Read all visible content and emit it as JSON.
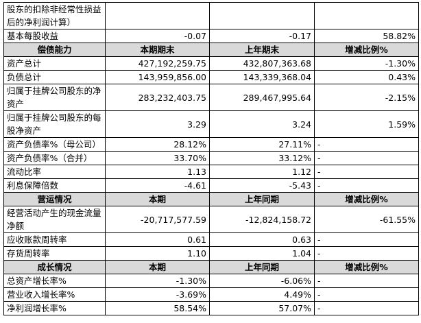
{
  "table": {
    "rows": [
      {
        "label": "股东的扣除非经常性损益后的净利润计算）"
      },
      {
        "label": "基本每股收益",
        "current": "-0.07",
        "previous": "-0.17",
        "change": "58.82%"
      },
      {
        "section": "偿债能力",
        "current": "本期期末",
        "previous": "上年期末",
        "change": "增减比例%"
      },
      {
        "label": "资产总计",
        "current": "427,192,259.75",
        "previous": "432,807,363.68",
        "change": "-1.30%"
      },
      {
        "label": "负债总计",
        "current": "143,959,856.00",
        "previous": "143,339,368.04",
        "change": "0.43%"
      },
      {
        "label": "归属于挂牌公司股东的净资产",
        "current": "283,232,403.75",
        "previous": "289,467,995.64",
        "change": "-2.15%"
      },
      {
        "label": "归属于挂牌公司股东的每股净资产",
        "current": "3.29",
        "previous": "3.24",
        "change": "1.59%"
      },
      {
        "label": "资产负债率%（母公司）",
        "current": "28.12%",
        "previous": "27.11%",
        "change": "-"
      },
      {
        "label": "资产负债率%（合并）",
        "current": "33.70%",
        "previous": "33.12%",
        "change": "-"
      },
      {
        "label": "流动比率",
        "current": "1.13",
        "previous": "1.12",
        "change": "-"
      },
      {
        "label": "利息保障倍数",
        "current": "-4.61",
        "previous": "-5.43",
        "change": "-"
      },
      {
        "section": "营运情况",
        "current": "本期",
        "previous": "上年同期",
        "change": "增减比例%"
      },
      {
        "label": "经营活动产生的现金流量净额",
        "current": "-20,717,577.59",
        "previous": "-12,824,158.72",
        "change": "-61.55%"
      },
      {
        "label": "应收账款周转率",
        "current": "0.61",
        "previous": "0.63",
        "change": "-"
      },
      {
        "label": "存货周转率",
        "current": "1.10",
        "previous": "1.04",
        "change": "-"
      },
      {
        "section": "成长情况",
        "current": "本期",
        "previous": "上年同期",
        "change": "增减比例%"
      },
      {
        "label": "总资产增长率%",
        "current": "-1.30%",
        "previous": "-6.06%",
        "change": "-"
      },
      {
        "label": "营业收入增长率%",
        "current": "-3.69%",
        "previous": "4.49%",
        "change": "-"
      },
      {
        "label": "净利润增长率%",
        "current": "58.54%",
        "previous": "57.07%",
        "change": "-"
      }
    ]
  }
}
